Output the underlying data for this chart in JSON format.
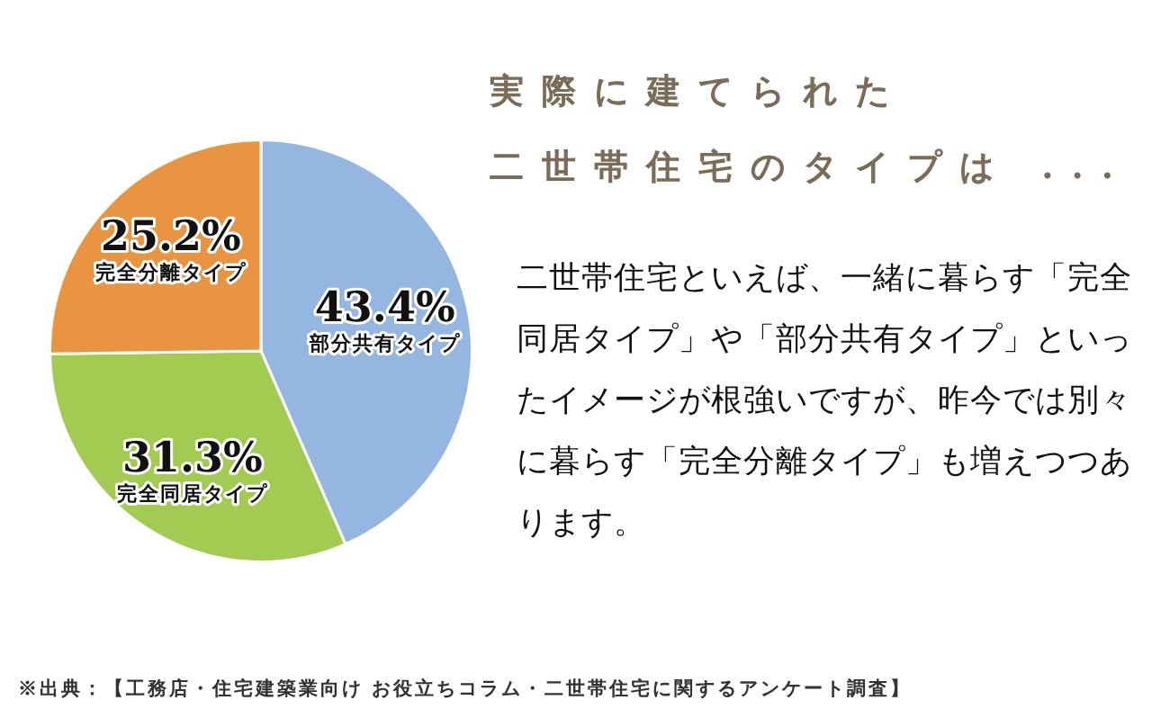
{
  "chart_data": {
    "type": "pie",
    "title": "実際に建てられた二世帯住宅のタイプは ...",
    "subtitle": "二世帯住宅といえば、一緒に暮らす「完全同居タイプ」や「部分共有タイプ」といったイメージが根強いですが、昨今では別々に暮らす「完全分離タイプ」も増えつつあります。",
    "categories": [
      "部分共有タイプ",
      "完全同居タイプ",
      "完全分離タイプ"
    ],
    "values": [
      43.4,
      31.3,
      25.2
    ],
    "colors": [
      "#95b6e0",
      "#a2cb52",
      "#e89440"
    ],
    "value_labels": [
      "43.4%",
      "31.3%",
      "25.2%"
    ],
    "annotations": [
      "※出典：【工務店・住宅建築業向け お役立ちコラム・二世帯住宅に関するアンケート調査】"
    ]
  }
}
